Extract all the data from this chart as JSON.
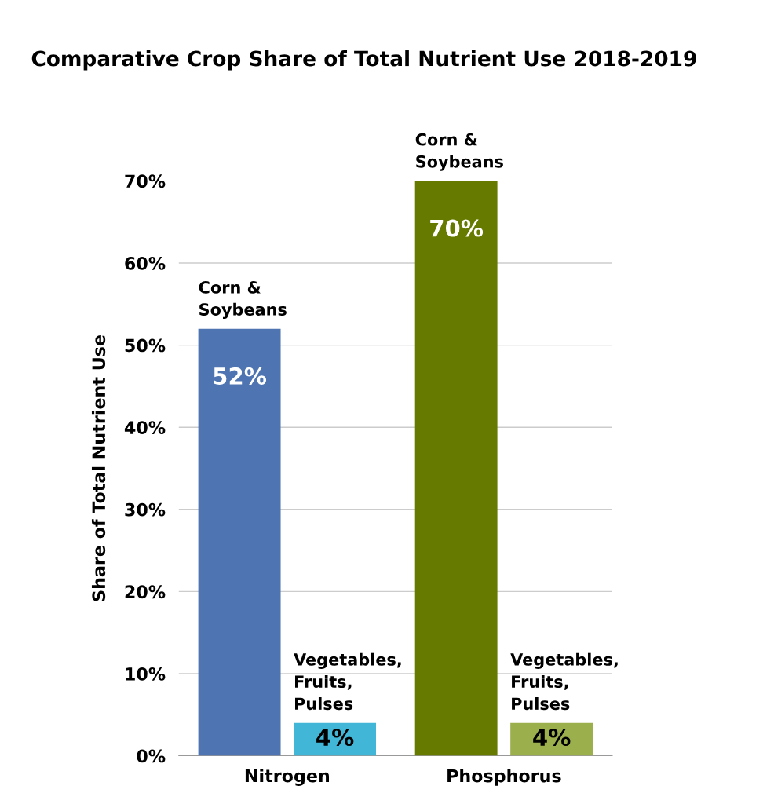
{
  "chart_data": {
    "type": "bar",
    "title": "Comparative Crop Share of Total Nutrient Use 2018-2019",
    "ylabel": "Share of Total Nutrient Use",
    "categories": [
      "Nitrogen",
      "Phosphorus"
    ],
    "series": [
      {
        "name": "Corn &\nSoybeans",
        "colors": [
          "#4e75b1",
          "#667a00"
        ],
        "values": [
          52,
          70
        ],
        "value_labels": [
          "52%",
          "70%"
        ]
      },
      {
        "name": "Vegetables,\nFruits,\nPulses",
        "colors": [
          "#42b6d6",
          "#9bb04c"
        ],
        "values": [
          4,
          4
        ],
        "value_labels": [
          "4%",
          "4%"
        ]
      }
    ],
    "ylim": [
      0,
      70
    ],
    "yticks": [
      {
        "value": 0,
        "label": "0%"
      },
      {
        "value": 10,
        "label": "10%"
      },
      {
        "value": 20,
        "label": "20%"
      },
      {
        "value": 30,
        "label": "30%"
      },
      {
        "value": 40,
        "label": "40%"
      },
      {
        "value": 50,
        "label": "50%"
      },
      {
        "value": 60,
        "label": "60%"
      },
      {
        "value": 70,
        "label": "70%"
      }
    ],
    "grid": "y",
    "legend": false
  }
}
